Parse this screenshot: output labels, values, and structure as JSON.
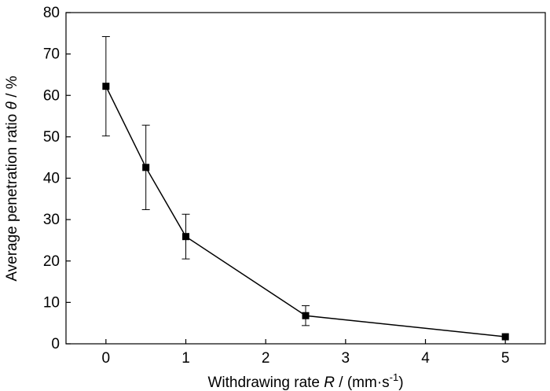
{
  "chart_data": {
    "type": "line",
    "x": [
      0,
      0.5,
      1,
      2.5,
      5
    ],
    "y": [
      62.2,
      42.6,
      25.9,
      6.8,
      1.7
    ],
    "error": [
      12.0,
      10.2,
      5.4,
      2.4,
      0
    ],
    "xlabel": {
      "prefix": "Withdrawing rate ",
      "var": "R",
      "suffix": " / (mm·s",
      "sup": "-1",
      "close": ")"
    },
    "ylabel": {
      "prefix": "Average penetration ratio ",
      "var": "θ",
      "suffix": " / %"
    },
    "xlim": [
      -0.5,
      5.5
    ],
    "ylim": [
      0,
      80
    ],
    "xticks": [
      0,
      1,
      2,
      3,
      4,
      5
    ],
    "yticks": [
      0,
      10,
      20,
      30,
      40,
      50,
      60,
      70,
      80
    ],
    "xtick_labels": [
      "0",
      "1",
      "2",
      "3",
      "4",
      "5"
    ],
    "ytick_labels": [
      "0",
      "10",
      "20",
      "30",
      "40",
      "50",
      "60",
      "70",
      "80"
    ],
    "grid": false,
    "marker": "square",
    "color": "#000000"
  }
}
